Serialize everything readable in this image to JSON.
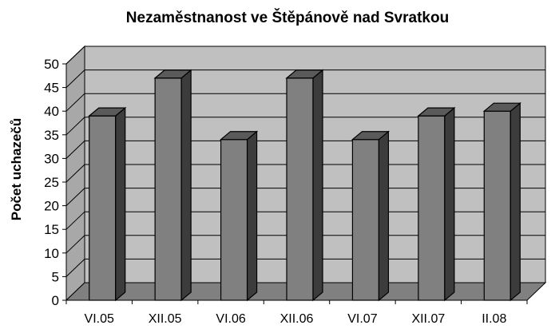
{
  "chart_data": {
    "type": "bar",
    "title": "Nezaměstnanost ve Štěpánově nad Svratkou",
    "xlabel": "",
    "ylabel": "Počet uchazečů",
    "categories": [
      "VI.05",
      "XII.05",
      "VI.06",
      "XII.06",
      "VI.07",
      "XII.07",
      "II.08"
    ],
    "values": [
      39,
      47,
      34,
      47,
      34,
      39,
      40
    ],
    "ylim": [
      0,
      50
    ],
    "yticks": [
      "0",
      "5",
      "10",
      "15",
      "20",
      "25",
      "30",
      "35",
      "40",
      "45",
      "50"
    ],
    "grid": true,
    "legend": "none",
    "colors": {
      "bar_front": "#808080",
      "bar_side": "#3c3c3c",
      "bar_top": "#5a5a5a",
      "back_wall": "#c0c0c0",
      "side_wall": "#a8a8a8",
      "floor": "#808080"
    }
  }
}
